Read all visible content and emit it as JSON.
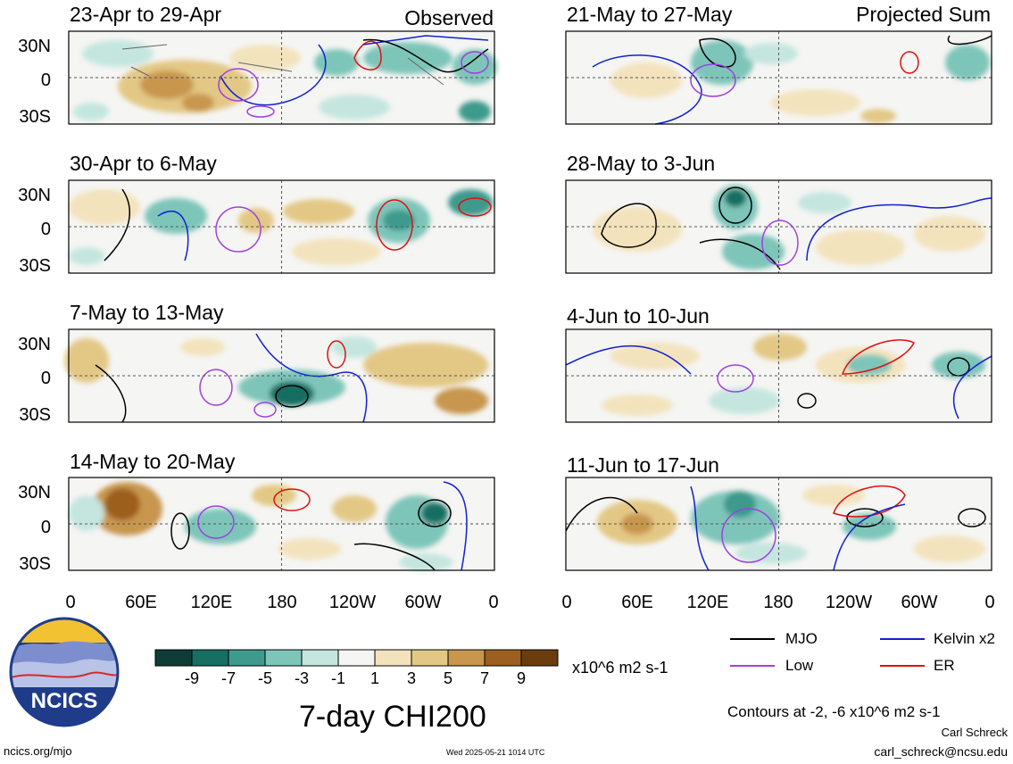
{
  "header": {
    "left_label": "Observed",
    "right_label": "Projected Sum"
  },
  "panels": [
    {
      "title": "23-Apr to 29-Apr"
    },
    {
      "title": "30-Apr to 6-May"
    },
    {
      "title": "7-May to 13-May"
    },
    {
      "title": "14-May to 20-May"
    },
    {
      "title": "21-May to 27-May"
    },
    {
      "title": "28-May to 3-Jun"
    },
    {
      "title": "4-Jun to 10-Jun"
    },
    {
      "title": "11-Jun to 17-Jun"
    }
  ],
  "lat_labels": [
    "30N",
    "0",
    "30S"
  ],
  "lon_labels": [
    "0",
    "60E",
    "120E",
    "180",
    "120W",
    "60W",
    "0"
  ],
  "colorbar": {
    "colors": [
      "#0f3d36",
      "#176e63",
      "#3d9a8d",
      "#7ec5b9",
      "#c4e6df",
      "#f5f5f3",
      "#f3e3bd",
      "#e3c885",
      "#c8964d",
      "#9c5f1f",
      "#6b3c0e"
    ],
    "labels": [
      "-9",
      "-7",
      "-5",
      "-3",
      "-1",
      "1",
      "3",
      "5",
      "7",
      "9"
    ],
    "units": "x10^6 m2 s-1"
  },
  "legend": {
    "mjo": {
      "label": "MJO",
      "color": "#000000"
    },
    "low": {
      "label": "Low",
      "color": "#a040e0"
    },
    "kelvin": {
      "label": "Kelvin x2",
      "color": "#1020d0"
    },
    "er": {
      "label": "ER",
      "color": "#e01010"
    }
  },
  "contour_note": "Contours at -2, -6 x10^6 m2 s-1",
  "main_title": "7-day CHI200",
  "logo_text": "NCICS",
  "footer": {
    "url": "ncics.org/mjo",
    "timestamp": "Wed 2025-05-21 1014 UTC",
    "author": "Carl Schreck",
    "email": "carl_schreck@ncsu.edu"
  }
}
